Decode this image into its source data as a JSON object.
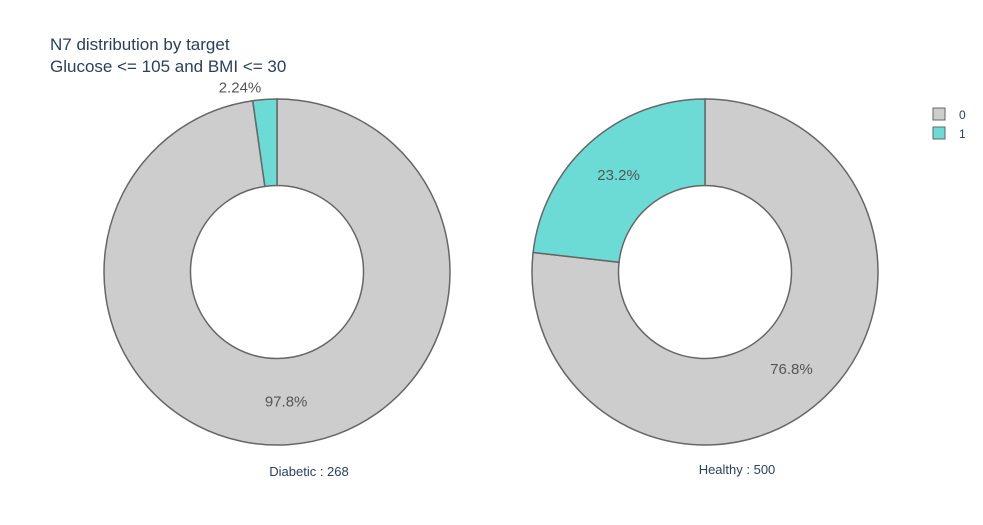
{
  "chart_data": {
    "type": "pie",
    "title": [
      "N7 distribution by target",
      "Glucose <= 105 and BMI <= 30"
    ],
    "hole": 0.5,
    "legend_placement": "top-right",
    "legend": [
      {
        "label": "0",
        "color": "#cdcdcd"
      },
      {
        "label": "1",
        "color": "#6ddbd5"
      }
    ],
    "pies": [
      {
        "domain_label": "Diabetic : 268",
        "slices": [
          {
            "category": "0",
            "percent": 97.8,
            "label": "97.8%",
            "color": "#cdcdcd"
          },
          {
            "category": "1",
            "percent": 2.24,
            "label": "2.24%",
            "color": "#6ddbd5"
          }
        ]
      },
      {
        "domain_label": "Healthy : 500",
        "slices": [
          {
            "category": "0",
            "percent": 76.8,
            "label": "76.8%",
            "color": "#cdcdcd"
          },
          {
            "category": "1",
            "percent": 23.2,
            "label": "23.2%",
            "color": "#6ddbd5"
          }
        ]
      }
    ]
  }
}
